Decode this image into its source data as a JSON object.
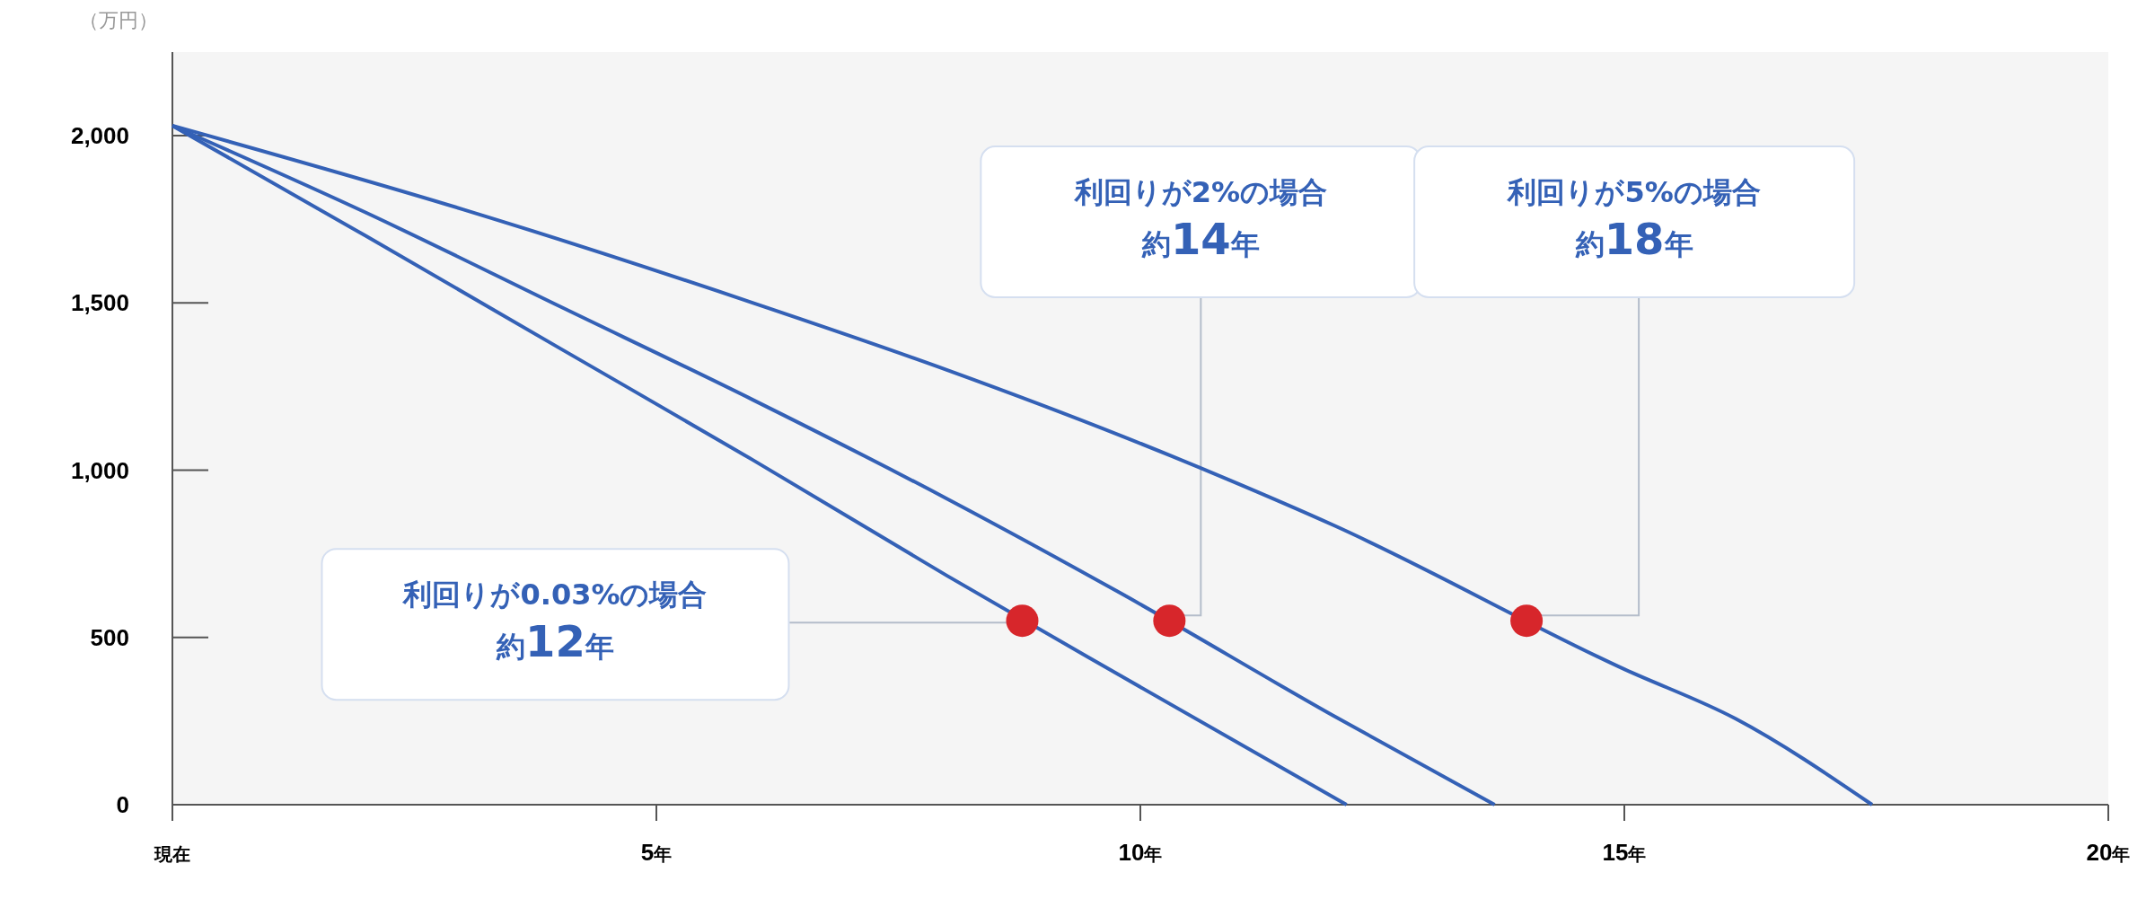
{
  "chart_data": {
    "type": "line",
    "ylabel": "（万円）",
    "xlim": [
      0,
      20
    ],
    "ylim": [
      0,
      2250
    ],
    "xticks": [
      {
        "value": 0,
        "label": "現在"
      },
      {
        "value": 5,
        "label": "5年"
      },
      {
        "value": 10,
        "label": "10年"
      },
      {
        "value": 15,
        "label": "15年"
      },
      {
        "value": 20,
        "label": "20年"
      }
    ],
    "yticks": [
      {
        "value": 0,
        "label": "0"
      },
      {
        "value": 500,
        "label": "500"
      },
      {
        "value": 1000,
        "label": "1,000"
      },
      {
        "value": 1500,
        "label": "1,500"
      },
      {
        "value": 2000,
        "label": "2,000"
      }
    ],
    "grid": false,
    "line_style": "solid",
    "series": [
      {
        "color": "#3461b6",
        "marker": "none",
        "x": [
          0,
          2,
          4,
          6,
          8,
          9.81,
          12.13
        ],
        "values": [
          2030,
          1700,
          1365,
          1030,
          685,
          383,
          0
        ]
      },
      {
        "color": "#3461b6",
        "marker": "none",
        "x": [
          0,
          2,
          4,
          6,
          8,
          9.81,
          12,
          13.66
        ],
        "values": [
          2030,
          1770,
          1490,
          1210,
          915,
          630,
          265,
          0
        ]
      },
      {
        "color": "#3461b6",
        "marker": "none",
        "x": [
          0,
          3,
          6,
          8,
          9.81,
          10.9,
          12,
          15,
          16.15,
          17.56
        ],
        "values": [
          2030,
          1780,
          1500,
          1300,
          1102,
          973,
          835,
          405,
          257,
          0
        ]
      },
      {
        "type": "scatter",
        "color": "#d7262b",
        "marker": "circle",
        "x": [
          8.78,
          10.3,
          13.99
        ],
        "values": [
          550,
          550,
          550
        ]
      }
    ],
    "annotations": [
      "利回りが0.03%の場合約12年",
      "利回りが2%の場合約14年",
      "利回りが5%の場合約18年"
    ]
  }
}
